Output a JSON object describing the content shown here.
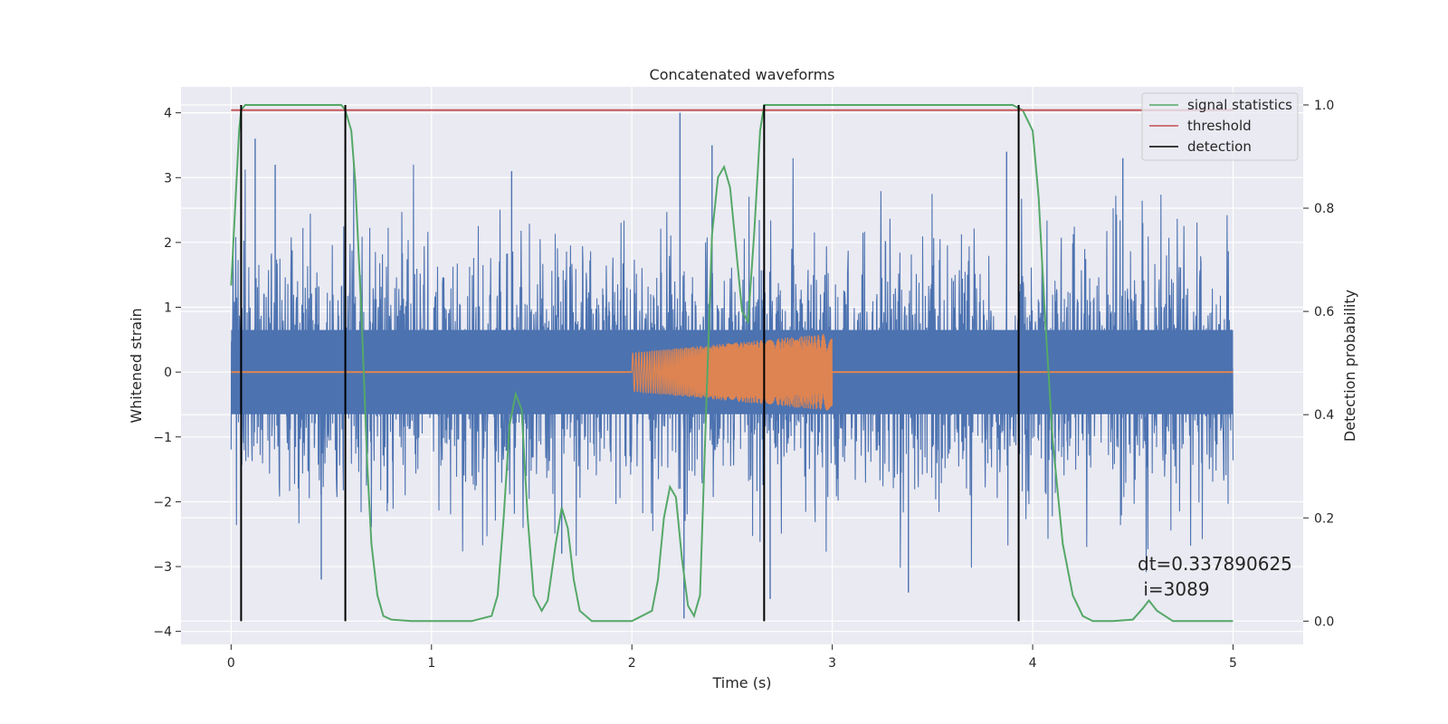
{
  "chart_data": {
    "type": "line",
    "title": "Concatenated waveforms",
    "xlabel": "Time (s)",
    "ylabel": "Whitened strain",
    "y2label": "Detection probability",
    "xlim": [
      -0.25,
      5.35
    ],
    "ylim": [
      -4.2,
      4.4
    ],
    "y2lim": [
      -0.045,
      1.035
    ],
    "xticks": [
      0,
      1,
      2,
      3,
      4,
      5
    ],
    "xtick_labels": [
      "0",
      "1",
      "2",
      "3",
      "4",
      "5"
    ],
    "yticks": [
      -4,
      -3,
      -2,
      -1,
      0,
      1,
      2,
      3,
      4
    ],
    "ytick_labels": [
      "−4",
      "−3",
      "−2",
      "−1",
      "0",
      "1",
      "2",
      "3",
      "4"
    ],
    "y2ticks": [
      0.0,
      0.2,
      0.4,
      0.6,
      0.8,
      1.0
    ],
    "y2tick_labels": [
      "0.0",
      "0.2",
      "0.4",
      "0.6",
      "0.8",
      "1.0"
    ],
    "grid": true,
    "legend": {
      "position": "top-right",
      "entries": [
        {
          "label": "signal statistics",
          "color": "#55a868"
        },
        {
          "label": "threshold",
          "color": "#c44e52"
        },
        {
          "label": "detection",
          "color": "#000000"
        }
      ]
    },
    "series": [
      {
        "kind": "noise",
        "color": "#4c72b0",
        "x_range": [
          0,
          5
        ],
        "core_amplitude": 0.65,
        "max_peak": 4.0,
        "min_peak": -3.8
      },
      {
        "kind": "chirp",
        "color": "#dd8452",
        "x_range": [
          2,
          3
        ],
        "amplitude_start": 0.3,
        "amplitude_end": 0.6,
        "outside_value": 0
      },
      {
        "name": "signal statistics",
        "color": "#55a868",
        "axis": "right",
        "x": [
          0.0,
          0.02,
          0.04,
          0.05,
          0.07,
          0.1,
          0.2,
          0.3,
          0.4,
          0.5,
          0.55,
          0.57,
          0.6,
          0.62,
          0.65,
          0.68,
          0.7,
          0.73,
          0.76,
          0.8,
          0.9,
          1.0,
          1.2,
          1.3,
          1.33,
          1.36,
          1.39,
          1.42,
          1.45,
          1.48,
          1.51,
          1.55,
          1.58,
          1.62,
          1.65,
          1.68,
          1.71,
          1.74,
          1.8,
          1.9,
          2.0,
          2.1,
          2.13,
          2.16,
          2.19,
          2.22,
          2.25,
          2.28,
          2.31,
          2.34,
          2.37,
          2.4,
          2.43,
          2.46,
          2.49,
          2.52,
          2.55,
          2.58,
          2.61,
          2.64,
          2.66,
          2.68,
          2.7,
          2.75,
          3.0,
          3.5,
          3.8,
          3.9,
          3.95,
          4.0,
          4.03,
          4.06,
          4.1,
          4.15,
          4.2,
          4.25,
          4.3,
          4.4,
          4.5,
          4.55,
          4.58,
          4.62,
          4.7,
          5.0
        ],
        "y": [
          0.65,
          0.8,
          0.95,
          0.99,
          1.0,
          1.0,
          1.0,
          1.0,
          1.0,
          1.0,
          1.0,
          0.99,
          0.95,
          0.85,
          0.6,
          0.3,
          0.15,
          0.05,
          0.01,
          0.003,
          0.0,
          0.0,
          0.0,
          0.01,
          0.05,
          0.2,
          0.38,
          0.44,
          0.41,
          0.2,
          0.05,
          0.02,
          0.04,
          0.15,
          0.22,
          0.18,
          0.08,
          0.02,
          0.0,
          0.0,
          0.0,
          0.02,
          0.08,
          0.2,
          0.26,
          0.24,
          0.12,
          0.03,
          0.01,
          0.05,
          0.4,
          0.75,
          0.86,
          0.88,
          0.84,
          0.72,
          0.6,
          0.58,
          0.75,
          0.95,
          1.0,
          1.0,
          1.0,
          1.0,
          1.0,
          1.0,
          1.0,
          1.0,
          0.99,
          0.95,
          0.82,
          0.6,
          0.35,
          0.15,
          0.05,
          0.01,
          0.0,
          0.0,
          0.003,
          0.025,
          0.04,
          0.02,
          0.0,
          0.0
        ]
      },
      {
        "name": "threshold",
        "color": "#c44e52",
        "axis": "right",
        "x": [
          0,
          5
        ],
        "y": [
          0.99,
          0.99
        ]
      },
      {
        "name": "detection",
        "color": "#000000",
        "axis": "right",
        "x": [
          0.05,
          0.57,
          2.66,
          3.93
        ],
        "y_range": [
          0,
          1
        ]
      }
    ],
    "annotation": {
      "lines": [
        "dt=0.337890625",
        " i=3089"
      ]
    }
  }
}
